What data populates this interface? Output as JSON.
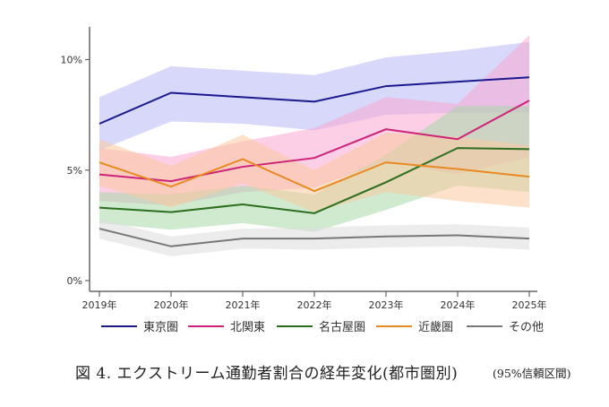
{
  "chart_data": {
    "type": "line",
    "title": "",
    "xlabel": "",
    "ylabel": "",
    "x": [
      "2019年",
      "2020年",
      "2021年",
      "2022年",
      "2023年",
      "2024年",
      "2025年"
    ],
    "ylim": [
      0,
      11.2
    ],
    "yticks": [
      {
        "value": 0,
        "label": "0%"
      },
      {
        "value": 5,
        "label": "5%"
      },
      {
        "value": 10,
        "label": "10%"
      }
    ],
    "grid": false,
    "legend_position": "bottom",
    "confidence_interval": "95%",
    "series": [
      {
        "name": "東京圏",
        "color": "#1a1a8c",
        "band_color": "#b8b8f5",
        "values": [
          7.1,
          8.5,
          8.3,
          8.1,
          8.8,
          9.0,
          9.2
        ],
        "lower": [
          5.9,
          7.2,
          7.1,
          6.8,
          7.5,
          7.6,
          7.6
        ],
        "upper": [
          8.3,
          9.7,
          9.5,
          9.3,
          10.1,
          10.4,
          10.8
        ]
      },
      {
        "name": "北関東",
        "color": "#cc2277",
        "band_color": "#f9a8d4",
        "values": [
          4.8,
          4.5,
          5.15,
          5.55,
          6.85,
          6.4,
          8.15
        ],
        "lower": [
          3.6,
          3.4,
          4.0,
          4.2,
          5.4,
          4.8,
          5.6
        ],
        "upper": [
          6.0,
          5.6,
          6.3,
          6.9,
          8.3,
          8.0,
          11.1
        ]
      },
      {
        "name": "名古屋圏",
        "color": "#2b6e1e",
        "band_color": "#a8d8a8",
        "values": [
          3.3,
          3.1,
          3.45,
          3.05,
          4.45,
          6.0,
          5.95
        ],
        "lower": [
          2.6,
          2.3,
          2.6,
          2.2,
          3.2,
          4.3,
          4.0
        ],
        "upper": [
          4.0,
          3.9,
          4.3,
          3.9,
          5.7,
          7.9,
          7.9
        ]
      },
      {
        "name": "近畿圏",
        "color": "#e88a22",
        "band_color": "#fbc9a0",
        "values": [
          5.35,
          4.25,
          5.5,
          4.05,
          5.35,
          5.05,
          4.7
        ],
        "lower": [
          4.3,
          3.3,
          4.4,
          3.1,
          4.0,
          3.6,
          3.3
        ],
        "upper": [
          6.4,
          5.2,
          6.6,
          5.0,
          6.7,
          6.5,
          6.1
        ]
      },
      {
        "name": "その他",
        "color": "#777777",
        "band_color": "#dddddd",
        "values": [
          2.35,
          1.55,
          1.9,
          1.9,
          2.0,
          2.05,
          1.9
        ],
        "lower": [
          1.9,
          1.1,
          1.45,
          1.4,
          1.5,
          1.55,
          1.4
        ],
        "upper": [
          2.8,
          2.0,
          2.35,
          2.4,
          2.5,
          2.55,
          2.4
        ]
      }
    ]
  },
  "caption": {
    "title": "図 4.  エクストリーム通勤者割合の経年変化(都市圏別)",
    "note": "(95%信頼区間)"
  }
}
